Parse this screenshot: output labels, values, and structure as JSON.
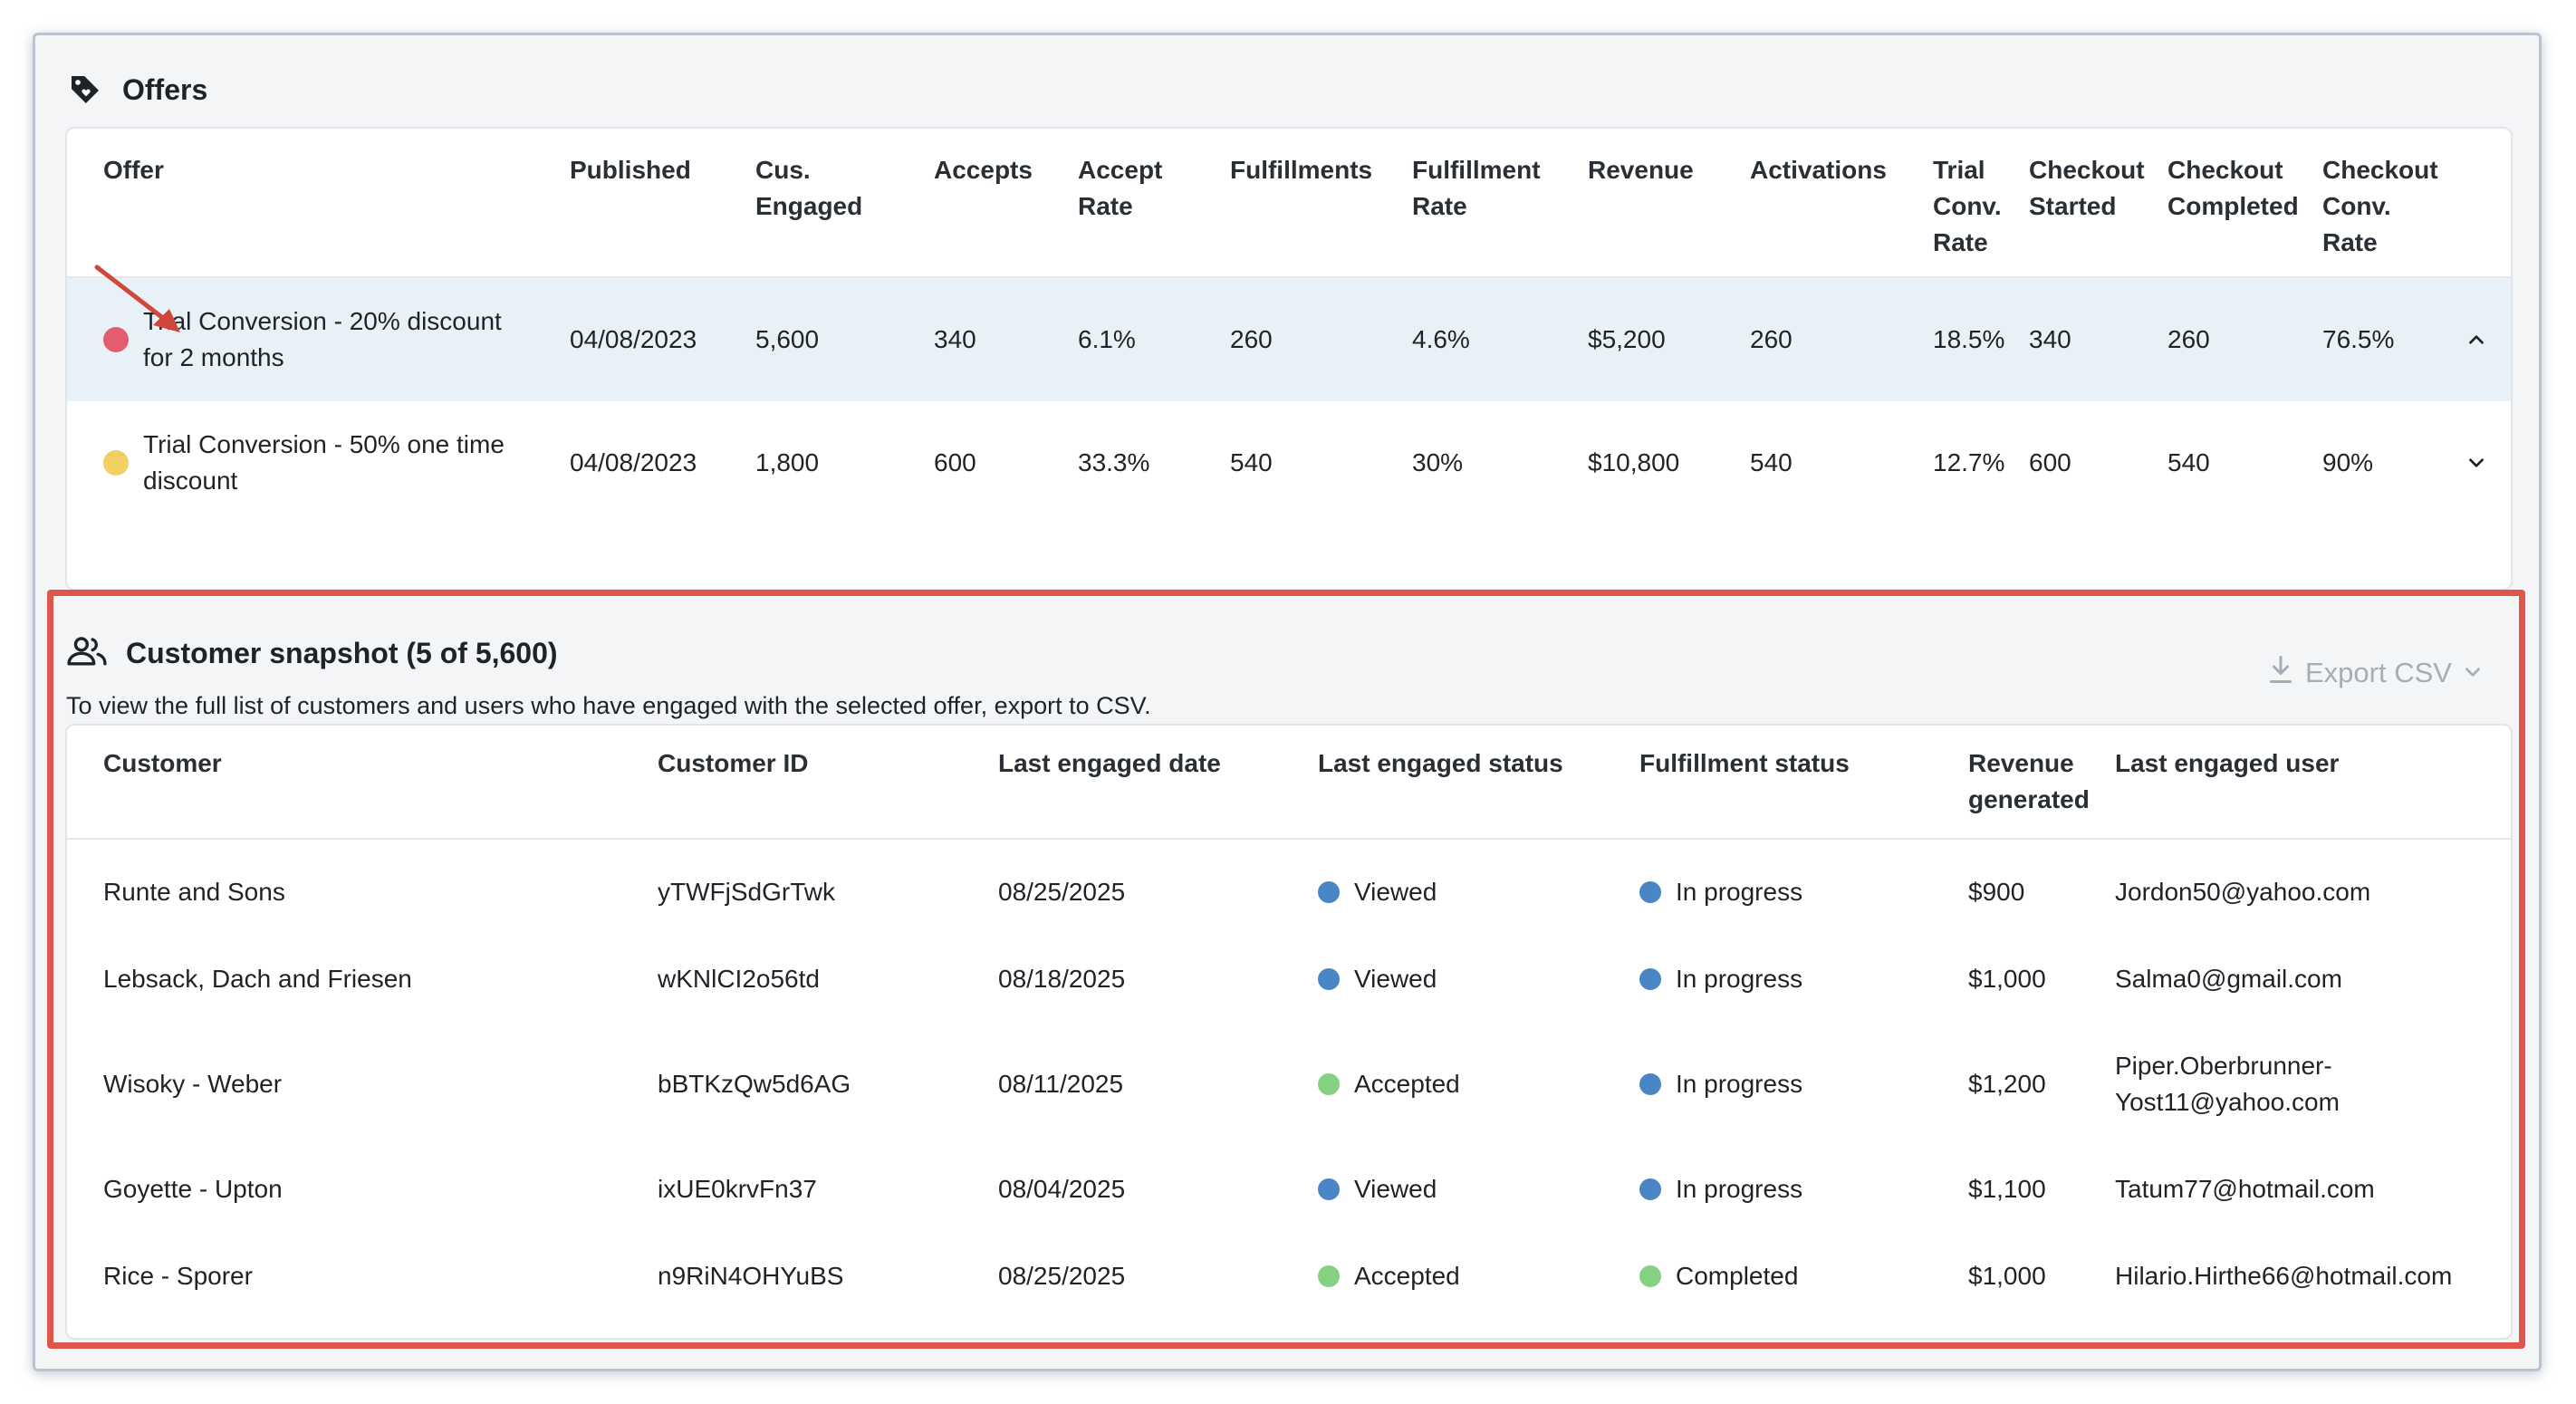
{
  "colors": {
    "accent_red": "#e0564c",
    "dot_red": "#e35d6f",
    "dot_yellow": "#f2cf62",
    "status_blue": "#4a86c5",
    "status_green": "#86d081",
    "selected_row": "#e8f1f8"
  },
  "offers": {
    "title": "Offers",
    "icon": "tag-icon",
    "columns": [
      "Offer",
      "Published",
      "Cus. Engaged",
      "Accepts",
      "Accept Rate",
      "Fulfillments",
      "Fulfillment Rate",
      "Revenue",
      "Activations",
      "Trial Conv. Rate",
      "Checkout Started",
      "Checkout Completed",
      "Checkout Conv. Rate"
    ],
    "header_lines": [
      [
        "Offer"
      ],
      [
        "Published"
      ],
      [
        "Cus.",
        "Engaged"
      ],
      [
        "Accepts"
      ],
      [
        "Accept",
        "Rate"
      ],
      [
        "Fulfillments"
      ],
      [
        "Fulfillment",
        "Rate"
      ],
      [
        "Revenue"
      ],
      [
        "Activations"
      ],
      [
        "Trial",
        "Conv.",
        "Rate"
      ],
      [
        "Checkout",
        "Started"
      ],
      [
        "Checkout",
        "Completed"
      ],
      [
        "Checkout",
        "Conv.",
        "Rate"
      ]
    ],
    "rows": [
      {
        "name_line1": "Trial Conversion - 20% discount",
        "name_line2": "for 2 months",
        "dot_color": "#e35d6f",
        "published": "04/08/2023",
        "engaged": "5,600",
        "accepts": "340",
        "accept_rate": "6.1%",
        "fulfillments": "260",
        "fulfillment_rate": "4.6%",
        "revenue": "$5,200",
        "activations": "260",
        "trial_conv_rate": "18.5%",
        "checkout_started": "340",
        "checkout_completed": "260",
        "checkout_conv_rate": "76.5%",
        "expanded": true
      },
      {
        "name_line1": "Trial Conversion - 50% one time",
        "name_line2": "discount",
        "dot_color": "#f2cf62",
        "published": "04/08/2023",
        "engaged": "1,800",
        "accepts": "600",
        "accept_rate": "33.3%",
        "fulfillments": "540",
        "fulfillment_rate": "30%",
        "revenue": "$10,800",
        "activations": "540",
        "trial_conv_rate": "12.7%",
        "checkout_started": "600",
        "checkout_completed": "540",
        "checkout_conv_rate": "90%",
        "expanded": false
      }
    ]
  },
  "snapshot": {
    "title": "Customer snapshot (5 of 5,600)",
    "icon": "users-icon",
    "description": "To view the full list of customers and users who have engaged with the selected offer, export to CSV.",
    "export_label": "Export CSV",
    "columns": [
      "Customer",
      "Customer ID",
      "Last engaged date",
      "Last engaged status",
      "Fulfillment status",
      "Revenue generated",
      "Last engaged user"
    ],
    "rows": [
      {
        "customer": "Runte and Sons",
        "id": "yTWFjSdGrTwk",
        "date": "08/25/2025",
        "status": "Viewed",
        "status_color": "#4a86c5",
        "fulfillment": "In progress",
        "fulfillment_color": "#4a86c5",
        "revenue": "$900",
        "user_line1": "Jordon50@yahoo.com",
        "user_line2": ""
      },
      {
        "customer": "Lebsack, Dach and Friesen",
        "id": "wKNlCI2o56td",
        "date": "08/18/2025",
        "status": "Viewed",
        "status_color": "#4a86c5",
        "fulfillment": "In progress",
        "fulfillment_color": "#4a86c5",
        "revenue": "$1,000",
        "user_line1": "Salma0@gmail.com",
        "user_line2": ""
      },
      {
        "customer": "Wisoky - Weber",
        "id": "bBTKzQw5d6AG",
        "date": "08/11/2025",
        "status": "Accepted",
        "status_color": "#86d081",
        "fulfillment": "In progress",
        "fulfillment_color": "#4a86c5",
        "revenue": "$1,200",
        "user_line1": "Piper.Oberbrunner-",
        "user_line2": "Yost11@yahoo.com"
      },
      {
        "customer": "Goyette - Upton",
        "id": "ixUE0krvFn37",
        "date": "08/04/2025",
        "status": "Viewed",
        "status_color": "#4a86c5",
        "fulfillment": "In progress",
        "fulfillment_color": "#4a86c5",
        "revenue": "$1,100",
        "user_line1": "Tatum77@hotmail.com",
        "user_line2": ""
      },
      {
        "customer": "Rice - Sporer",
        "id": "n9RiN4OHYuBS",
        "date": "08/25/2025",
        "status": "Accepted",
        "status_color": "#86d081",
        "fulfillment": "Completed",
        "fulfillment_color": "#86d081",
        "revenue": "$1,000",
        "user_line1": "Hilario.Hirthe66@hotmail.com",
        "user_line2": ""
      }
    ]
  }
}
